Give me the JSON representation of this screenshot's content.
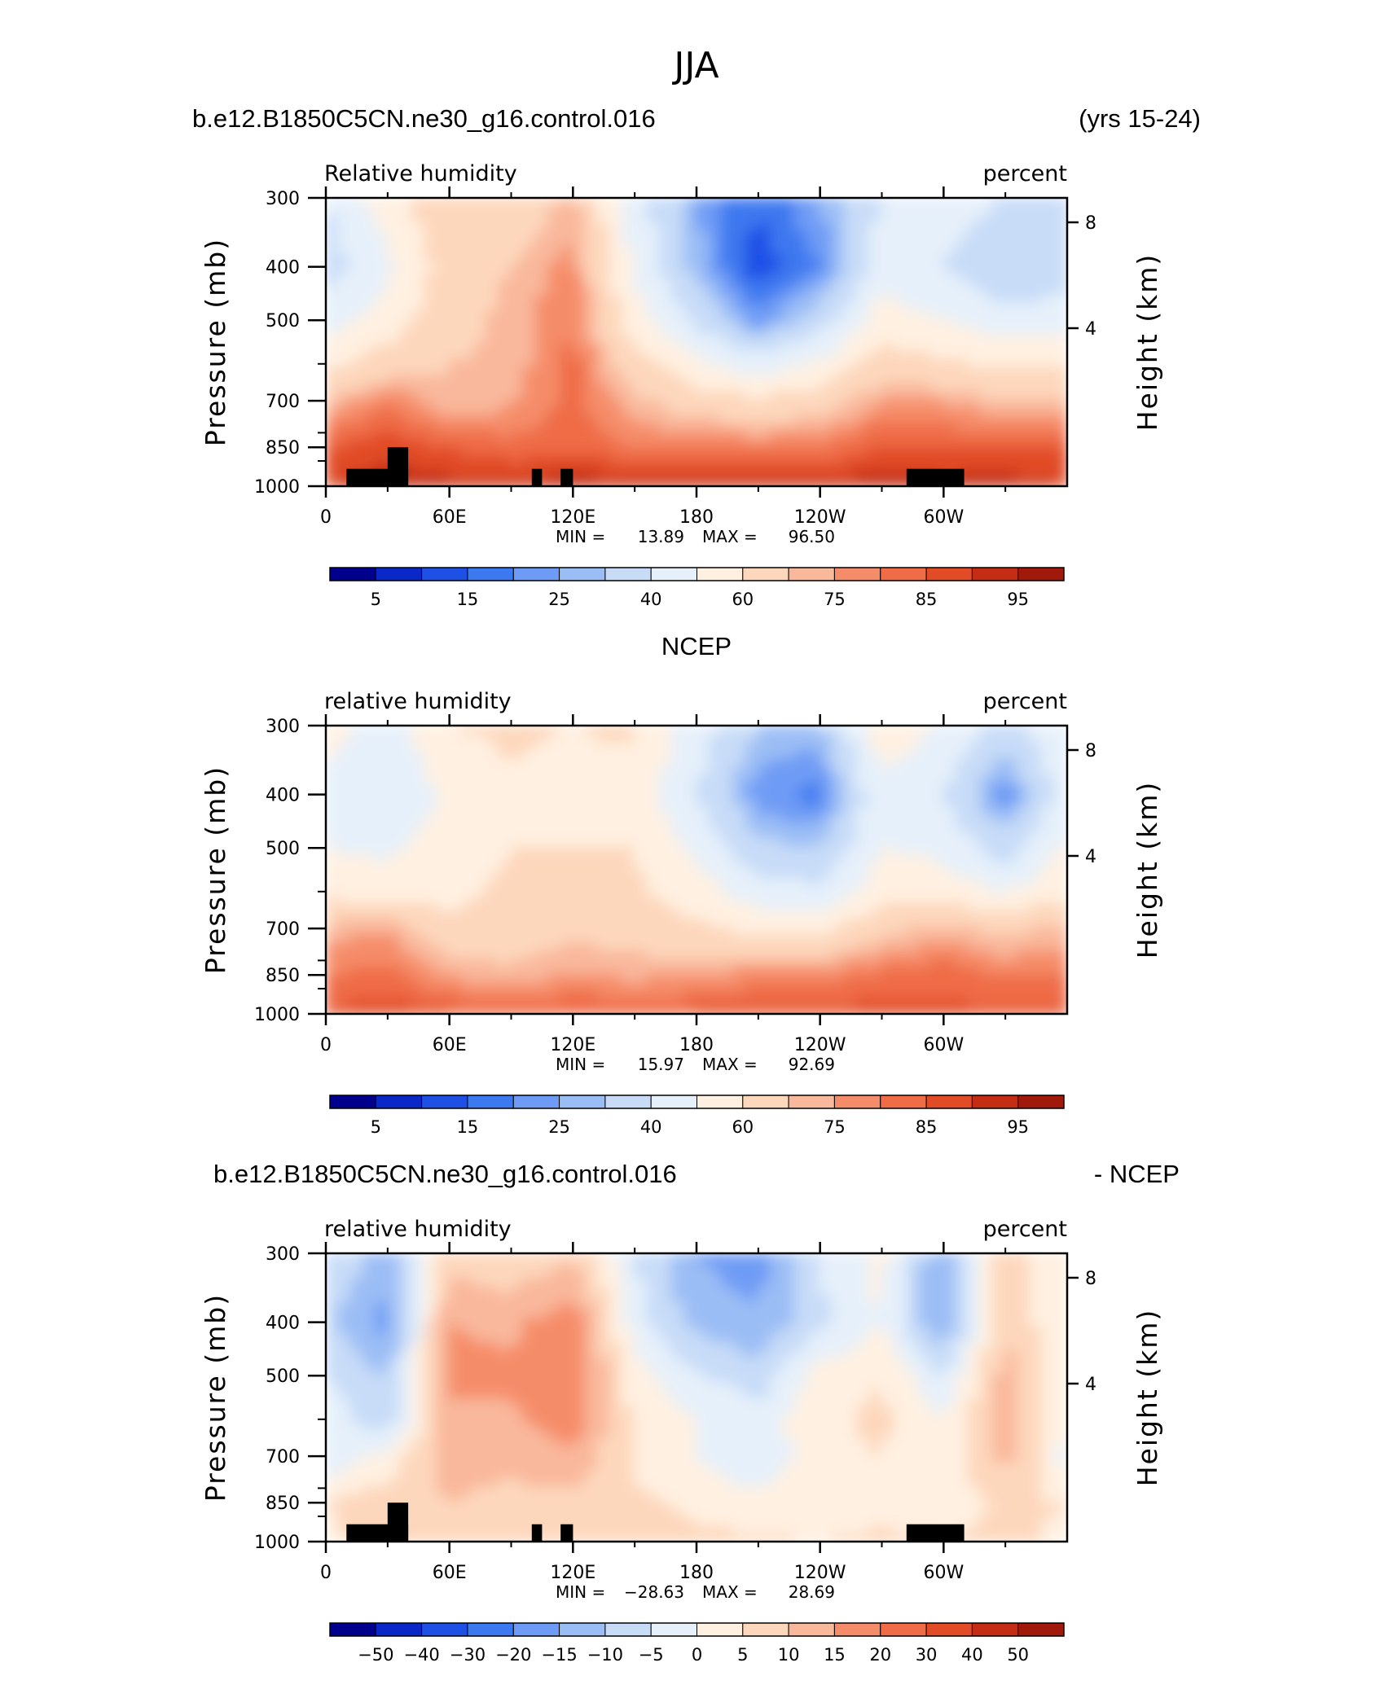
{
  "figure_title": "JJA",
  "panels": [
    {
      "id": "model",
      "left_title": "b.e12.B1850C5CN.ne30_g16.control.016",
      "right_title": "(yrs 15-24)",
      "variable": "Relative humidity",
      "units": "percent",
      "stats": {
        "min_label": "MIN =",
        "min": "13.89",
        "max_label": "MAX =",
        "max": "96.50"
      },
      "colorbar": {
        "labels": [
          "5",
          "15",
          "25",
          "40",
          "60",
          "75",
          "85",
          "95"
        ]
      },
      "topography": true
    },
    {
      "id": "obs",
      "left_title": "",
      "center_title": "NCEP",
      "right_title": "",
      "variable": "relative humidity",
      "units": "percent",
      "stats": {
        "min_label": "MIN =",
        "min": "15.97",
        "max_label": "MAX =",
        "max": "92.69"
      },
      "colorbar": {
        "labels": [
          "5",
          "15",
          "25",
          "40",
          "60",
          "75",
          "85",
          "95"
        ]
      },
      "topography": false
    },
    {
      "id": "diff",
      "left_title": "b.e12.B1850C5CN.ne30_g16.control.016",
      "right_title": "- NCEP",
      "variable": "relative humidity",
      "units": "percent",
      "stats": {
        "min_label": "MIN =",
        "min": "−28.63",
        "max_label": "MAX =",
        "max": "28.69"
      },
      "colorbar": {
        "labels": [
          "−50",
          "−40",
          "−30",
          "−20",
          "−15",
          "−10",
          "−5",
          "0",
          "5",
          "10",
          "15",
          "20",
          "30",
          "40",
          "50"
        ]
      },
      "topography": true
    }
  ],
  "axes": {
    "y_title": "Pressure (mb)",
    "y2_title": "Height (km)",
    "y_ticks": [
      "300",
      "400",
      "500",
      "700",
      "850",
      "1000"
    ],
    "y2_ticks": [
      "8",
      "4"
    ],
    "x_ticks": [
      "0",
      "60E",
      "120E",
      "180",
      "120W",
      "60W"
    ]
  },
  "colors": {
    "palette": [
      "#00008c",
      "#0a28c8",
      "#1e50e6",
      "#3c78f0",
      "#6e9bf5",
      "#9bbdf5",
      "#c8dcf8",
      "#e6f0fa",
      "#fff0e1",
      "#fdd7bc",
      "#f9b79b",
      "#f58c69",
      "#ef6c46",
      "#e14b26",
      "#c32d14",
      "#a0190a",
      "#780505"
    ],
    "topography": "#000000"
  },
  "chart_data": [
    {
      "type": "heatmap",
      "title": "Relative humidity",
      "x_domain": [
        "0",
        "360"
      ],
      "y_domain_mb": [
        1000,
        300
      ],
      "contour_levels": [
        5,
        10,
        15,
        20,
        25,
        30,
        40,
        50,
        60,
        70,
        75,
        80,
        85,
        90,
        95
      ],
      "min": 13.89,
      "max": 96.5,
      "pattern": "moist (80-96) below 850 mb along the section; dry core (<20) near 400 mb between 150W and 110W; moist column near 120E",
      "grid_lon": [
        0,
        30,
        60,
        90,
        120,
        150,
        180,
        210,
        240,
        270,
        300,
        330,
        360
      ],
      "grid_p": [
        300,
        400,
        500,
        600,
        700,
        850,
        1000
      ],
      "values": [
        [
          40,
          55,
          68,
          62,
          72,
          45,
          25,
          15,
          25,
          40,
          45,
          40,
          40
        ],
        [
          35,
          48,
          65,
          70,
          78,
          48,
          28,
          12,
          20,
          45,
          40,
          30,
          35
        ],
        [
          45,
          55,
          66,
          72,
          80,
          55,
          38,
          22,
          35,
          55,
          50,
          45,
          45
        ],
        [
          58,
          65,
          70,
          72,
          82,
          65,
          52,
          45,
          52,
          65,
          62,
          58,
          58
        ],
        [
          70,
          80,
          70,
          74,
          82,
          72,
          65,
          62,
          65,
          75,
          75,
          70,
          70
        ],
        [
          85,
          88,
          85,
          82,
          84,
          80,
          80,
          80,
          80,
          86,
          85,
          85,
          85
        ],
        [
          90,
          94,
          92,
          92,
          94,
          92,
          93,
          93,
          92,
          94,
          92,
          93,
          90
        ]
      ]
    },
    {
      "type": "heatmap",
      "title": "relative humidity",
      "x_domain": [
        "0",
        "360"
      ],
      "y_domain_mb": [
        1000,
        300
      ],
      "contour_levels": [
        5,
        10,
        15,
        20,
        25,
        30,
        40,
        50,
        60,
        70,
        75,
        80,
        85,
        90,
        95
      ],
      "min": 15.97,
      "max": 92.69,
      "pattern": "moist (75-90) near surface; dry center near 400 mb around 140W; dry spot near 60W-30W at 400 mb",
      "grid_lon": [
        0,
        30,
        60,
        90,
        120,
        150,
        180,
        210,
        240,
        270,
        300,
        330,
        360
      ],
      "grid_p": [
        300,
        400,
        500,
        600,
        700,
        850,
        1000
      ],
      "values": [
        [
          55,
          45,
          60,
          62,
          60,
          62,
          45,
          30,
          28,
          55,
          50,
          35,
          50
        ],
        [
          45,
          40,
          52,
          58,
          56,
          55,
          40,
          22,
          18,
          48,
          40,
          20,
          45
        ],
        [
          50,
          48,
          55,
          60,
          60,
          60,
          48,
          32,
          30,
          50,
          48,
          35,
          52
        ],
        [
          58,
          55,
          58,
          62,
          65,
          62,
          55,
          45,
          42,
          55,
          55,
          50,
          58
        ],
        [
          72,
          75,
          62,
          64,
          68,
          66,
          62,
          58,
          58,
          68,
          72,
          68,
          72
        ],
        [
          80,
          82,
          75,
          72,
          76,
          74,
          75,
          78,
          78,
          82,
          84,
          80,
          80
        ],
        [
          86,
          88,
          86,
          84,
          86,
          84,
          86,
          88,
          86,
          88,
          86,
          86,
          86
        ]
      ]
    },
    {
      "type": "heatmap",
      "title": "relative humidity",
      "x_domain": [
        "0",
        "360"
      ],
      "y_domain_mb": [
        1000,
        300
      ],
      "contour_levels": [
        -50,
        -40,
        -30,
        -20,
        -15,
        -10,
        -5,
        0,
        5,
        10,
        15,
        20,
        30,
        40,
        50
      ],
      "min": -28.63,
      "max": 28.69,
      "pattern": "positive (+15 to +25) between 60E and 150E in mid-troposphere; negative (-10 to -20) near 300-400 mb from 150E to 120W and near 15E and 60W",
      "grid_lon": [
        0,
        30,
        60,
        90,
        120,
        150,
        180,
        210,
        240,
        270,
        300,
        330,
        360
      ],
      "grid_p": [
        300,
        400,
        500,
        600,
        700,
        850,
        1000
      ],
      "values": [
        [
          -5,
          -12,
          8,
          5,
          10,
          -5,
          -15,
          -18,
          -5,
          2,
          -15,
          8,
          2
        ],
        [
          -8,
          -18,
          15,
          14,
          18,
          -2,
          -12,
          -14,
          -6,
          0,
          -15,
          10,
          0
        ],
        [
          -5,
          -10,
          16,
          16,
          20,
          2,
          -4,
          -8,
          2,
          5,
          -5,
          12,
          0
        ],
        [
          -2,
          -8,
          14,
          14,
          18,
          4,
          0,
          -3,
          4,
          6,
          0,
          14,
          0
        ],
        [
          -4,
          2,
          12,
          12,
          14,
          4,
          0,
          -5,
          4,
          5,
          2,
          12,
          -2
        ],
        [
          5,
          8,
          10,
          8,
          8,
          6,
          4,
          2,
          2,
          4,
          2,
          6,
          5
        ],
        [
          4,
          6,
          6,
          6,
          8,
          8,
          6,
          6,
          5,
          6,
          5,
          6,
          4
        ]
      ]
    }
  ]
}
